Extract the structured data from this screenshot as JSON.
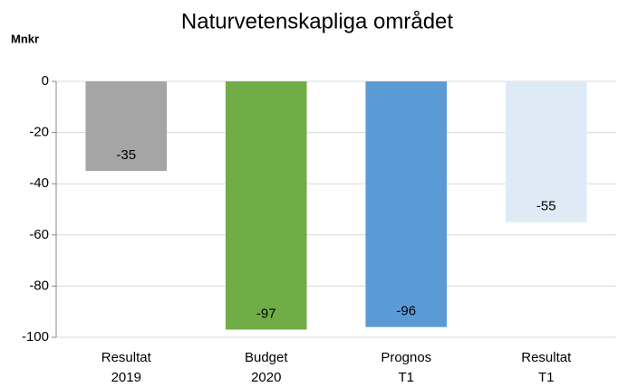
{
  "chart_data": {
    "type": "bar",
    "title": "Naturvetenskapliga området",
    "y_label": "Mnkr",
    "categories": [
      [
        "Resultat",
        "2019"
      ],
      [
        "Budget",
        "2020"
      ],
      [
        "Prognos",
        "T1"
      ],
      [
        "Resultat",
        "T1"
      ]
    ],
    "values": [
      -35,
      -97,
      -96,
      -55
    ],
    "colors": [
      "#a5a5a5",
      "#70ad47",
      "#5b9bd5",
      "#deebf7"
    ],
    "ylim": [
      -100,
      0
    ],
    "yticks": [
      0,
      -20,
      -40,
      -60,
      -80,
      -100
    ],
    "grid": true
  }
}
